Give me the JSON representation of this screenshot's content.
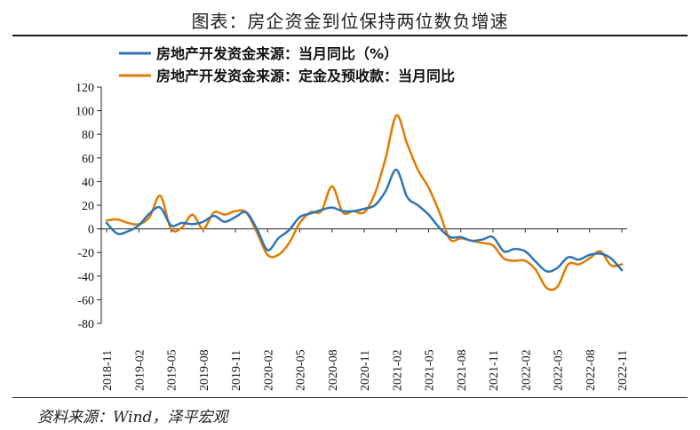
{
  "header": {
    "title": "图表：房企资金到位保持两位数负增速"
  },
  "footer": {
    "source": "资料来源：Wind，泽平宏观"
  },
  "colors": {
    "series1": "#2E75B6",
    "series2": "#E07B00"
  },
  "chart_data": {
    "type": "line",
    "title": "图表：房企资金到位保持两位数负增速",
    "legend_position": "top-left",
    "grid": false,
    "ylim": [
      -80,
      120
    ],
    "yticks": [
      120,
      100,
      80,
      60,
      40,
      20,
      0,
      -20,
      -40,
      -60,
      -80
    ],
    "x": [
      "2018-11",
      "2018-12",
      "2019-01",
      "2019-02",
      "2019-03",
      "2019-04",
      "2019-05",
      "2019-06",
      "2019-07",
      "2019-08",
      "2019-09",
      "2019-10",
      "2019-11",
      "2019-12",
      "2020-01",
      "2020-02",
      "2020-03",
      "2020-04",
      "2020-05",
      "2020-06",
      "2020-07",
      "2020-08",
      "2020-09",
      "2020-10",
      "2020-11",
      "2020-12",
      "2021-01",
      "2021-02",
      "2021-03",
      "2021-04",
      "2021-05",
      "2021-06",
      "2021-07",
      "2021-08",
      "2021-09",
      "2021-10",
      "2021-11",
      "2021-12",
      "2022-01",
      "2022-02",
      "2022-03",
      "2022-04",
      "2022-05",
      "2022-06",
      "2022-07",
      "2022-08",
      "2022-09",
      "2022-10",
      "2022-11"
    ],
    "xtick_labels": [
      "2018-11",
      "2019-02",
      "2019-05",
      "2019-08",
      "2019-11",
      "2020-02",
      "2020-05",
      "2020-08",
      "2020-11",
      "2021-02",
      "2021-05",
      "2021-08",
      "2021-11",
      "2022-02",
      "2022-05",
      "2022-08",
      "2022-11"
    ],
    "series": [
      {
        "name": "房地产开发资金来源：当月同比（%）",
        "values": [
          5,
          -4,
          -2,
          3,
          13,
          18,
          3,
          5,
          4,
          6,
          11,
          6,
          10,
          14,
          0,
          -18,
          -8,
          -1,
          10,
          13,
          16,
          18,
          15,
          15,
          17,
          20,
          32,
          50,
          27,
          20,
          12,
          1,
          -7,
          -7,
          -10,
          -9,
          -7,
          -19,
          -17,
          -19,
          -28,
          -36,
          -33,
          -24,
          -26,
          -22,
          -21,
          -25,
          -35
        ]
      },
      {
        "name": "房地产开发资金来源：定金及预收款：当月同比",
        "values": [
          7,
          8,
          5,
          4,
          10,
          28,
          0,
          1,
          12,
          0,
          14,
          12,
          15,
          14,
          -3,
          -22,
          -22,
          -12,
          5,
          14,
          15,
          36,
          14,
          15,
          14,
          30,
          60,
          96,
          72,
          50,
          35,
          14,
          -9,
          -8,
          -10,
          -12,
          -14,
          -25,
          -27,
          -27,
          -35,
          -50,
          -49,
          -30,
          -30,
          -25,
          -19,
          -31,
          -30
        ]
      }
    ]
  }
}
